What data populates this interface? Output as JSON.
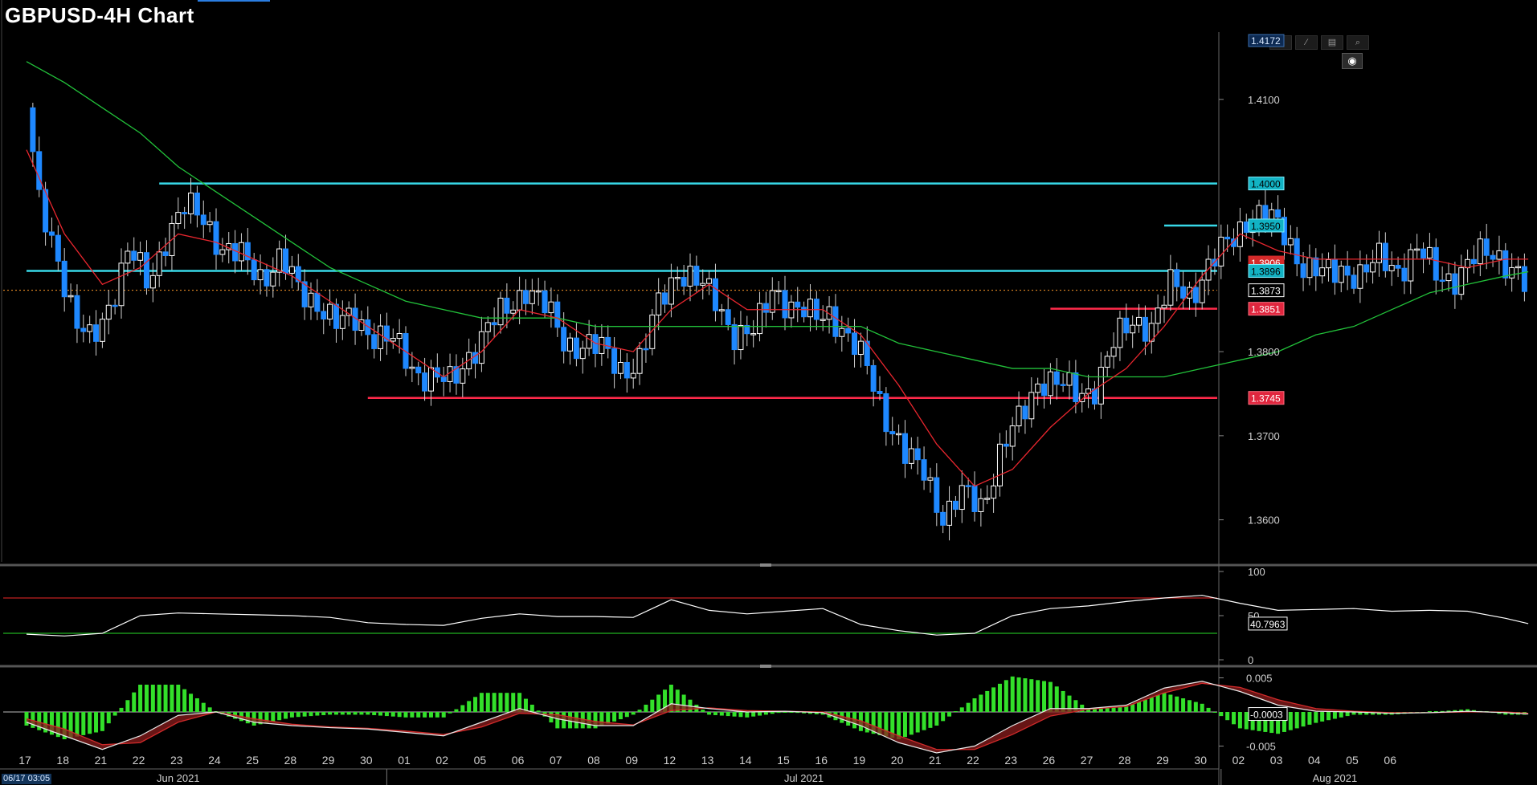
{
  "title": "GBPUSD-4H Chart",
  "cursor_timestamp": "06/17 03:05",
  "toolbar": {
    "items": [
      "crosshair-icon",
      "pencil-icon",
      "table-icon",
      "zoom-icon"
    ],
    "settings": "settings-icon"
  },
  "colors": {
    "background": "#000000",
    "bull_candle": "#ffffff",
    "bear_candle": "#1e88ff",
    "ma_short": "#e8262e",
    "ma_long": "#22c23a",
    "resistance": "#38d9e8",
    "support": "#ff2a4a",
    "last_price": "#ff9a2a",
    "rsi_line": "#ffffff",
    "macd_hist": "#33e02a"
  },
  "x_axis": {
    "day_labels": [
      "17",
      "18",
      "21",
      "22",
      "23",
      "24",
      "25",
      "28",
      "29",
      "30",
      "01",
      "02",
      "05",
      "06",
      "07",
      "08",
      "09",
      "12",
      "13",
      "14",
      "15",
      "16",
      "19",
      "20",
      "21",
      "22",
      "23",
      "26",
      "27",
      "28",
      "29",
      "30",
      "02",
      "03",
      "04",
      "05",
      "06"
    ],
    "month_labels": [
      "Jun 2021",
      "Jul 2021",
      "Aug 2021"
    ]
  },
  "chart_data": [
    {
      "type": "candlestick",
      "title": "GBPUSD-4H Chart",
      "ylim": [
        1.355,
        1.418
      ],
      "yticks": [
        "1.4100",
        "1.3800",
        "1.3700",
        "1.3600"
      ],
      "top_label": "1.4172",
      "price_tags": [
        {
          "value": 1.4,
          "label": "1.4000",
          "kind": "resistance"
        },
        {
          "value": 1.395,
          "label": "1.3950",
          "kind": "resistance"
        },
        {
          "value": 1.3906,
          "label": "1.3906",
          "kind": "ma_short"
        },
        {
          "value": 1.3896,
          "label": "1.3896",
          "kind": "resistance"
        },
        {
          "value": 1.3873,
          "label": "1.3873",
          "kind": "last"
        },
        {
          "value": 1.3851,
          "label": "1.3851",
          "kind": "support"
        },
        {
          "value": 1.3745,
          "label": "1.3745",
          "kind": "support"
        }
      ],
      "horizontal_lines": [
        {
          "value": 1.4,
          "from_day": 3.5,
          "kind": "resistance"
        },
        {
          "value": 1.395,
          "from_day": 30.0,
          "kind": "resistance"
        },
        {
          "value": 1.3896,
          "from_day": 0.0,
          "kind": "resistance"
        },
        {
          "value": 1.3851,
          "from_day": 27.0,
          "kind": "support"
        },
        {
          "value": 1.3745,
          "from_day": 9.0,
          "kind": "support"
        }
      ],
      "last_price": 1.3873,
      "close_path": [
        [
          0,
          1.409
        ],
        [
          0.3,
          1.398
        ],
        [
          0.8,
          1.392
        ],
        [
          1.3,
          1.383
        ],
        [
          1.7,
          1.381
        ],
        [
          2.2,
          1.386
        ],
        [
          2.7,
          1.392
        ],
        [
          3.2,
          1.388
        ],
        [
          3.7,
          1.394
        ],
        [
          4.2,
          1.397
        ],
        [
          4.7,
          1.396
        ],
        [
          5.2,
          1.392
        ],
        [
          5.7,
          1.391
        ],
        [
          6.2,
          1.389
        ],
        [
          6.7,
          1.391
        ],
        [
          7.2,
          1.387
        ],
        [
          7.7,
          1.386
        ],
        [
          8.2,
          1.383
        ],
        [
          8.7,
          1.384
        ],
        [
          9.2,
          1.382
        ],
        [
          9.7,
          1.381
        ],
        [
          10.2,
          1.378
        ],
        [
          10.7,
          1.377
        ],
        [
          11.2,
          1.376
        ],
        [
          11.7,
          1.38
        ],
        [
          12.2,
          1.383
        ],
        [
          12.7,
          1.385
        ],
        [
          13.2,
          1.388
        ],
        [
          13.7,
          1.385
        ],
        [
          14.2,
          1.381
        ],
        [
          14.7,
          1.381
        ],
        [
          15.2,
          1.38
        ],
        [
          15.7,
          1.378
        ],
        [
          16.2,
          1.379
        ],
        [
          16.7,
          1.386
        ],
        [
          17.2,
          1.39
        ],
        [
          17.7,
          1.388
        ],
        [
          18.2,
          1.386
        ],
        [
          18.7,
          1.382
        ],
        [
          19.2,
          1.382
        ],
        [
          19.7,
          1.388
        ],
        [
          20.2,
          1.385
        ],
        [
          20.7,
          1.384
        ],
        [
          21.2,
          1.385
        ],
        [
          21.7,
          1.381
        ],
        [
          22.2,
          1.378
        ],
        [
          22.7,
          1.372
        ],
        [
          23.2,
          1.367
        ],
        [
          23.7,
          1.366
        ],
        [
          24.2,
          1.36
        ],
        [
          24.7,
          1.363
        ],
        [
          25.2,
          1.362
        ],
        [
          25.7,
          1.368
        ],
        [
          26.2,
          1.372
        ],
        [
          26.7,
          1.377
        ],
        [
          27.2,
          1.376
        ],
        [
          27.7,
          1.375
        ],
        [
          28.2,
          1.376
        ],
        [
          28.7,
          1.381
        ],
        [
          29.2,
          1.384
        ],
        [
          29.7,
          1.383
        ],
        [
          30.2,
          1.388
        ],
        [
          30.7,
          1.387
        ],
        [
          31.2,
          1.39
        ],
        [
          31.7,
          1.393
        ],
        [
          32.2,
          1.396
        ],
        [
          32.7,
          1.396
        ],
        [
          33.2,
          1.394
        ],
        [
          33.7,
          1.39
        ],
        [
          34.2,
          1.389
        ],
        [
          34.7,
          1.39
        ],
        [
          35.2,
          1.389
        ],
        [
          35.7,
          1.391
        ],
        [
          36.2,
          1.39
        ],
        [
          36.7,
          1.392
        ],
        [
          37.2,
          1.389
        ],
        [
          37.7,
          1.389
        ],
        [
          38.2,
          1.391
        ],
        [
          38.7,
          1.392
        ],
        [
          39.2,
          1.39
        ],
        [
          39.6,
          1.387
        ]
      ],
      "ma_short_path": [
        [
          0,
          1.404
        ],
        [
          1.0,
          1.394
        ],
        [
          2.0,
          1.388
        ],
        [
          3.0,
          1.39
        ],
        [
          4.0,
          1.394
        ],
        [
          5.0,
          1.393
        ],
        [
          6.0,
          1.391
        ],
        [
          7.0,
          1.389
        ],
        [
          8.0,
          1.386
        ],
        [
          9.0,
          1.383
        ],
        [
          10.0,
          1.38
        ],
        [
          11.0,
          1.377
        ],
        [
          12.0,
          1.38
        ],
        [
          13.0,
          1.385
        ],
        [
          14.0,
          1.384
        ],
        [
          15.0,
          1.381
        ],
        [
          16.0,
          1.38
        ],
        [
          17.0,
          1.385
        ],
        [
          18.0,
          1.388
        ],
        [
          19.0,
          1.385
        ],
        [
          20.0,
          1.385
        ],
        [
          21.0,
          1.385
        ],
        [
          22.0,
          1.382
        ],
        [
          23.0,
          1.376
        ],
        [
          24.0,
          1.369
        ],
        [
          25.0,
          1.364
        ],
        [
          26.0,
          1.366
        ],
        [
          27.0,
          1.371
        ],
        [
          28.0,
          1.375
        ],
        [
          29.0,
          1.378
        ],
        [
          30.0,
          1.383
        ],
        [
          31.0,
          1.389
        ],
        [
          32.0,
          1.394
        ],
        [
          33.0,
          1.392
        ],
        [
          34.0,
          1.391
        ],
        [
          35.0,
          1.391
        ],
        [
          36.0,
          1.391
        ],
        [
          37.0,
          1.391
        ],
        [
          38.0,
          1.39
        ],
        [
          39.0,
          1.391
        ],
        [
          39.6,
          1.391
        ]
      ],
      "ma_long_path": [
        [
          0,
          1.4145
        ],
        [
          1.0,
          1.412
        ],
        [
          2.0,
          1.409
        ],
        [
          3.0,
          1.406
        ],
        [
          4.0,
          1.402
        ],
        [
          5.0,
          1.399
        ],
        [
          6.0,
          1.396
        ],
        [
          7.0,
          1.393
        ],
        [
          8.0,
          1.39
        ],
        [
          9.0,
          1.388
        ],
        [
          10.0,
          1.386
        ],
        [
          11.0,
          1.385
        ],
        [
          12.0,
          1.384
        ],
        [
          13.0,
          1.384
        ],
        [
          14.0,
          1.384
        ],
        [
          15.0,
          1.383
        ],
        [
          16.0,
          1.383
        ],
        [
          17.0,
          1.383
        ],
        [
          18.0,
          1.383
        ],
        [
          19.0,
          1.383
        ],
        [
          20.0,
          1.383
        ],
        [
          21.0,
          1.383
        ],
        [
          22.0,
          1.383
        ],
        [
          23.0,
          1.381
        ],
        [
          24.0,
          1.38
        ],
        [
          25.0,
          1.379
        ],
        [
          26.0,
          1.378
        ],
        [
          27.0,
          1.378
        ],
        [
          28.0,
          1.377
        ],
        [
          29.0,
          1.377
        ],
        [
          30.0,
          1.377
        ],
        [
          31.0,
          1.378
        ],
        [
          32.0,
          1.379
        ],
        [
          33.0,
          1.38
        ],
        [
          34.0,
          1.382
        ],
        [
          35.0,
          1.383
        ],
        [
          36.0,
          1.385
        ],
        [
          37.0,
          1.387
        ],
        [
          38.0,
          1.388
        ],
        [
          39.0,
          1.389
        ],
        [
          39.6,
          1.3895
        ]
      ]
    },
    {
      "type": "line",
      "name": "RSI",
      "ylim": [
        0,
        100
      ],
      "yticks": [
        "100",
        "50",
        "0"
      ],
      "levels": [
        70,
        30
      ],
      "current_label": "40.7963",
      "path": [
        [
          0,
          29
        ],
        [
          1,
          27
        ],
        [
          2,
          30
        ],
        [
          3,
          50
        ],
        [
          4,
          53
        ],
        [
          5,
          52
        ],
        [
          6,
          51
        ],
        [
          7,
          50
        ],
        [
          8,
          48
        ],
        [
          9,
          42
        ],
        [
          10,
          40
        ],
        [
          11,
          39
        ],
        [
          12,
          47
        ],
        [
          13,
          52
        ],
        [
          14,
          49
        ],
        [
          15,
          49
        ],
        [
          16,
          48
        ],
        [
          17,
          68
        ],
        [
          18,
          56
        ],
        [
          19,
          52
        ],
        [
          20,
          55
        ],
        [
          21,
          58
        ],
        [
          22,
          40
        ],
        [
          23,
          33
        ],
        [
          24,
          28
        ],
        [
          25,
          30
        ],
        [
          26,
          50
        ],
        [
          27,
          58
        ],
        [
          28,
          61
        ],
        [
          29,
          66
        ],
        [
          30,
          70
        ],
        [
          31,
          73
        ],
        [
          32,
          64
        ],
        [
          33,
          56
        ],
        [
          34,
          57
        ],
        [
          35,
          58
        ],
        [
          36,
          55
        ],
        [
          37,
          56
        ],
        [
          38,
          55
        ],
        [
          39,
          47
        ],
        [
          39.6,
          41
        ]
      ]
    },
    {
      "type": "area",
      "name": "MACD",
      "ylim": [
        -0.008,
        0.006
      ],
      "yticks": [
        "0.005",
        "-0.005"
      ],
      "current_label": "-0.0003",
      "macd_path": [
        [
          0,
          -0.0015
        ],
        [
          1,
          -0.0035
        ],
        [
          2,
          -0.0055
        ],
        [
          3,
          -0.0035
        ],
        [
          4,
          -0.0005
        ],
        [
          5,
          0.0
        ],
        [
          6,
          -0.0015
        ],
        [
          7,
          -0.002
        ],
        [
          8,
          -0.0023
        ],
        [
          9,
          -0.0025
        ],
        [
          10,
          -0.003
        ],
        [
          11,
          -0.0035
        ],
        [
          12,
          -0.0015
        ],
        [
          13,
          0.0005
        ],
        [
          14,
          -0.001
        ],
        [
          15,
          -0.002
        ],
        [
          16,
          -0.002
        ],
        [
          17,
          0.0012
        ],
        [
          18,
          0.0005
        ],
        [
          19,
          0.0
        ],
        [
          20,
          0.0001
        ],
        [
          21,
          -0.0001
        ],
        [
          22,
          -0.002
        ],
        [
          23,
          -0.0045
        ],
        [
          24,
          -0.006
        ],
        [
          25,
          -0.005
        ],
        [
          26,
          -0.002
        ],
        [
          27,
          0.0005
        ],
        [
          28,
          0.0005
        ],
        [
          29,
          0.001
        ],
        [
          30,
          0.0035
        ],
        [
          31,
          0.0045
        ],
        [
          32,
          0.003
        ],
        [
          33,
          0.001
        ],
        [
          34,
          0.0001
        ],
        [
          35,
          0.0
        ],
        [
          36,
          -0.0002
        ],
        [
          37,
          -0.0001
        ],
        [
          38,
          0.0001
        ],
        [
          39,
          -0.0001
        ],
        [
          39.6,
          -0.0003
        ]
      ],
      "signal_path": [
        [
          0,
          -0.001
        ],
        [
          1,
          -0.0025
        ],
        [
          2,
          -0.0048
        ],
        [
          3,
          -0.0045
        ],
        [
          4,
          -0.0015
        ],
        [
          5,
          0.0
        ],
        [
          6,
          -0.001
        ],
        [
          7,
          -0.0018
        ],
        [
          8,
          -0.0022
        ],
        [
          9,
          -0.0024
        ],
        [
          10,
          -0.0028
        ],
        [
          11,
          -0.0033
        ],
        [
          12,
          -0.0022
        ],
        [
          13,
          -0.0002
        ],
        [
          14,
          -0.0004
        ],
        [
          15,
          -0.0014
        ],
        [
          16,
          -0.0019
        ],
        [
          17,
          0.0002
        ],
        [
          18,
          0.0006
        ],
        [
          19,
          0.0002
        ],
        [
          20,
          0.0001
        ],
        [
          21,
          0.0
        ],
        [
          22,
          -0.0013
        ],
        [
          23,
          -0.0035
        ],
        [
          24,
          -0.0055
        ],
        [
          25,
          -0.0055
        ],
        [
          26,
          -0.0033
        ],
        [
          27,
          -0.0006
        ],
        [
          28,
          0.0004
        ],
        [
          29,
          0.0008
        ],
        [
          30,
          0.0028
        ],
        [
          31,
          0.0042
        ],
        [
          32,
          0.0036
        ],
        [
          33,
          0.0018
        ],
        [
          34,
          0.0005
        ],
        [
          35,
          0.0001
        ],
        [
          36,
          -0.0001
        ],
        [
          37,
          -0.0001
        ],
        [
          38,
          0.0
        ],
        [
          39,
          0.0
        ],
        [
          39.6,
          -0.0002
        ]
      ]
    }
  ]
}
